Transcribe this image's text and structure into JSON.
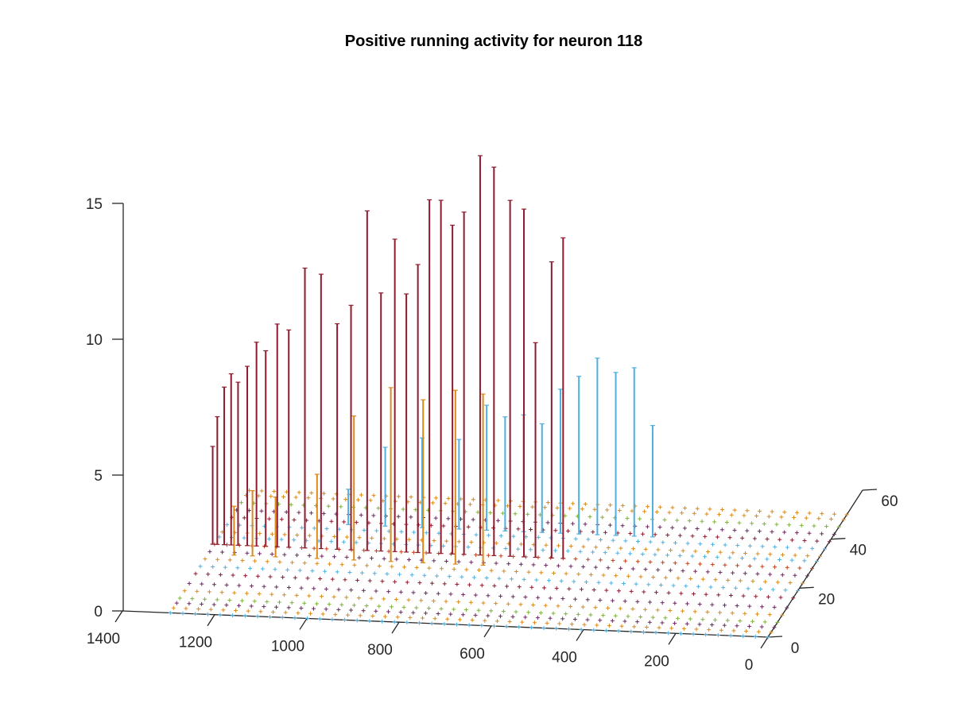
{
  "chart_data": {
    "type": "3d-stem-scatter",
    "title": "Positive running activity for neuron 118",
    "xlabel": "",
    "ylabel": "",
    "zlabel": "",
    "x_ticks": [
      "0",
      "200",
      "400",
      "600",
      "800",
      "1000",
      "1200",
      "1400"
    ],
    "y_ticks": [
      "0",
      "20",
      "40",
      "60"
    ],
    "z_ticks": [
      "0",
      "5",
      "10",
      "15"
    ],
    "xlim": [
      0,
      1400
    ],
    "ylim": [
      0,
      60
    ],
    "zlim": [
      0,
      15
    ],
    "grid": false,
    "view": "oblique, x axis decreasing left-to-right",
    "series_colors": [
      "#8f1b2e",
      "#c2411c",
      "#d98a1a",
      "#4fb0e0",
      "#7db33a",
      "#6a2a5e"
    ],
    "stems_dark_red": [
      {
        "x": 1300,
        "y": 28,
        "z": 3.6
      },
      {
        "x": 1290,
        "y": 28,
        "z": 4.7
      },
      {
        "x": 1275,
        "y": 28,
        "z": 5.8
      },
      {
        "x": 1260,
        "y": 28,
        "z": 6.3
      },
      {
        "x": 1245,
        "y": 28,
        "z": 6.0
      },
      {
        "x": 1225,
        "y": 28,
        "z": 6.6
      },
      {
        "x": 1205,
        "y": 28,
        "z": 7.5
      },
      {
        "x": 1185,
        "y": 28,
        "z": 7.2
      },
      {
        "x": 1160,
        "y": 28,
        "z": 8.2
      },
      {
        "x": 1135,
        "y": 28,
        "z": 8.0
      },
      {
        "x": 1100,
        "y": 28,
        "z": 10.3
      },
      {
        "x": 1065,
        "y": 28,
        "z": 10.1
      },
      {
        "x": 1030,
        "y": 28,
        "z": 8.3
      },
      {
        "x": 1000,
        "y": 28,
        "z": 9.0
      },
      {
        "x": 965,
        "y": 28,
        "z": 12.5
      },
      {
        "x": 935,
        "y": 28,
        "z": 9.5
      },
      {
        "x": 905,
        "y": 28,
        "z": 11.5
      },
      {
        "x": 880,
        "y": 28,
        "z": 9.5
      },
      {
        "x": 855,
        "y": 28,
        "z": 10.6
      },
      {
        "x": 830,
        "y": 28,
        "z": 13.0
      },
      {
        "x": 805,
        "y": 28,
        "z": 13.0
      },
      {
        "x": 780,
        "y": 28,
        "z": 12.1
      },
      {
        "x": 755,
        "y": 28,
        "z": 12.6
      },
      {
        "x": 720,
        "y": 28,
        "z": 14.7
      },
      {
        "x": 690,
        "y": 28,
        "z": 14.3
      },
      {
        "x": 655,
        "y": 28,
        "z": 13.1
      },
      {
        "x": 625,
        "y": 28,
        "z": 12.8
      },
      {
        "x": 600,
        "y": 28,
        "z": 7.9
      },
      {
        "x": 565,
        "y": 28,
        "z": 10.9
      },
      {
        "x": 540,
        "y": 28,
        "z": 11.8
      }
    ],
    "stems_orange": [
      {
        "x": 1240,
        "y": 24,
        "z": 1.8
      },
      {
        "x": 1200,
        "y": 24,
        "z": 2.4
      },
      {
        "x": 1150,
        "y": 24,
        "z": 2.2
      },
      {
        "x": 1060,
        "y": 24,
        "z": 3.1
      },
      {
        "x": 980,
        "y": 24,
        "z": 5.3
      },
      {
        "x": 900,
        "y": 24,
        "z": 6.4
      },
      {
        "x": 830,
        "y": 24,
        "z": 6.0
      },
      {
        "x": 760,
        "y": 24,
        "z": 6.4
      },
      {
        "x": 700,
        "y": 24,
        "z": 6.3
      }
    ],
    "stems_light_blue": [
      {
        "x": 1040,
        "y": 38,
        "z": 1.3
      },
      {
        "x": 960,
        "y": 38,
        "z": 2.9
      },
      {
        "x": 880,
        "y": 38,
        "z": 3.3
      },
      {
        "x": 800,
        "y": 38,
        "z": 3.3
      },
      {
        "x": 740,
        "y": 38,
        "z": 4.6
      },
      {
        "x": 700,
        "y": 38,
        "z": 4.2
      },
      {
        "x": 660,
        "y": 38,
        "z": 4.3
      },
      {
        "x": 620,
        "y": 38,
        "z": 4.0
      },
      {
        "x": 580,
        "y": 38,
        "z": 5.3
      },
      {
        "x": 540,
        "y": 38,
        "z": 5.8
      },
      {
        "x": 500,
        "y": 38,
        "z": 6.5
      },
      {
        "x": 460,
        "y": 38,
        "z": 6.0
      },
      {
        "x": 420,
        "y": 38,
        "z": 6.2
      },
      {
        "x": 380,
        "y": 38,
        "z": 4.1
      }
    ],
    "baseline_rows": [
      {
        "y": 0,
        "color": "#4fb0e0"
      },
      {
        "y": 2,
        "color": "#d98a1a"
      },
      {
        "y": 4,
        "color": "#6a2a5e"
      },
      {
        "y": 6,
        "color": "#7db33a"
      },
      {
        "y": 9,
        "color": "#d98a1a"
      },
      {
        "y": 12,
        "color": "#6a2a5e"
      },
      {
        "y": 16,
        "color": "#8f1b2e"
      },
      {
        "y": 19,
        "color": "#4fb0e0"
      },
      {
        "y": 22,
        "color": "#d98a1a"
      },
      {
        "y": 25,
        "color": "#6a2a5e"
      },
      {
        "y": 28,
        "color": "#c2411c"
      },
      {
        "y": 31,
        "color": "#4fb0e0"
      },
      {
        "y": 33,
        "color": "#d98a1a"
      },
      {
        "y": 36,
        "color": "#4fb0e0"
      },
      {
        "y": 39,
        "color": "#8f1b2e"
      },
      {
        "y": 42,
        "color": "#6a2a5e"
      },
      {
        "y": 45,
        "color": "#7db33a"
      },
      {
        "y": 48,
        "color": "#d98a1a"
      },
      {
        "y": 50,
        "color": "#d98a1a"
      }
    ]
  }
}
